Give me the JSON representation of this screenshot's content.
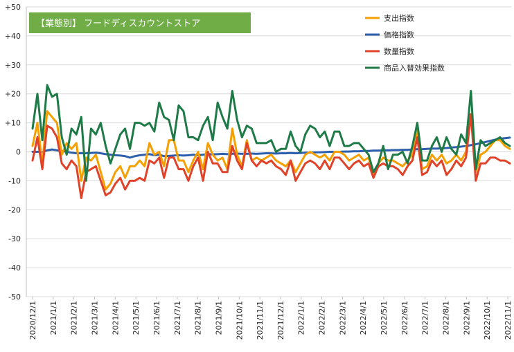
{
  "chart_data": {
    "type": "line",
    "title": "【業態別】 フードディスカウントストア",
    "title_bg_color": "#70ad47",
    "ylim": [
      -50,
      50
    ],
    "y_ticks": [
      "+50",
      "+40",
      "+30",
      "+20",
      "+10",
      "0",
      "-10",
      "-20",
      "-30",
      "-40",
      "-50"
    ],
    "y_tick_values": [
      50,
      40,
      30,
      20,
      10,
      0,
      -10,
      -20,
      -30,
      -40,
      -50
    ],
    "x_ticks": [
      "2020/12/1",
      "2021/1/1",
      "2021/2/1",
      "2021/3/1",
      "2021/4/1",
      "2021/5/1",
      "2021/6/1",
      "2021/7/1",
      "2021/8/1",
      "2021/9/1",
      "2021/10/1",
      "2021/11/1",
      "2021/12/1",
      "2022/1/1",
      "2022/2/1",
      "2022/3/1",
      "2022/4/1",
      "2022/5/1",
      "2022/6/1",
      "2022/7/1",
      "2022/8/1",
      "2022/9/1",
      "2022/10/1",
      "2022/11/1"
    ],
    "x_interval": "weekly",
    "x_start": "2020/12/1",
    "grid": "horizontal",
    "legend_position": "top-right",
    "series": [
      {
        "name": "支出指数",
        "color": "#f5a000",
        "values": [
          2,
          10,
          -4,
          14,
          12,
          10,
          -1,
          3,
          1,
          3,
          -10,
          -2,
          -3,
          -1,
          -7,
          -13,
          -11,
          -7,
          -5,
          -9,
          -5,
          -5,
          -3,
          -5,
          3,
          -1,
          0,
          -5,
          4,
          4,
          -3,
          -3,
          -7,
          -3,
          0,
          -6,
          3,
          -1,
          -3,
          -2,
          -6,
          8,
          -1,
          -5,
          4,
          -3,
          -2,
          -3,
          -2,
          -1,
          -3,
          -4,
          -5,
          -3,
          -7,
          -4,
          -1,
          0,
          -1,
          -2,
          -1,
          -3,
          0,
          0,
          -1,
          -3,
          -2,
          -1,
          -3,
          -2,
          -8,
          -4,
          -2,
          -3,
          -3,
          -4,
          -5,
          -3,
          -1,
          8,
          -6,
          -5,
          -1,
          -3,
          -1,
          -4,
          -3,
          -1,
          -3,
          0,
          13,
          -7,
          -1,
          0,
          2,
          4,
          4,
          2,
          1
        ]
      },
      {
        "name": "価格指数",
        "color": "#2e5fad",
        "values": [
          0,
          0,
          0,
          0.5,
          0.8,
          0.5,
          0.3,
          0,
          -0.3,
          -0.5,
          -0.5,
          -0.5,
          -0.4,
          -0.3,
          -0.5,
          -0.8,
          -1,
          -1.2,
          -1.3,
          -1.5,
          -2,
          -1.5,
          -1.2,
          -1,
          -0.8,
          -1.2,
          -1,
          -1.5,
          -1.4,
          -1.3,
          -1.2,
          -1.3,
          -1.2,
          -1,
          -1.2,
          -1,
          -0.8,
          -0.9,
          -0.8,
          -0.7,
          -0.8,
          -0.7,
          -0.6,
          -0.7,
          -0.7,
          -0.6,
          -0.7,
          -0.6,
          -0.5,
          -0.5,
          -0.6,
          -0.5,
          -0.5,
          -0.4,
          -0.5,
          -0.4,
          -0.3,
          -0.3,
          -0.2,
          -0.2,
          -0.1,
          0,
          0,
          0,
          0.1,
          0.1,
          0.2,
          0.2,
          0.3,
          0.3,
          0.4,
          0.4,
          0.5,
          0.5,
          0.6,
          0.6,
          0.7,
          0.7,
          0.8,
          0.9,
          0.9,
          1,
          1.1,
          1.1,
          1.2,
          1.3,
          1.5,
          1.6,
          1.8,
          2,
          2.3,
          2.6,
          3,
          3.4,
          3.8,
          4.2,
          4.5,
          4.7,
          4.9
        ]
      },
      {
        "name": "数量指数",
        "color": "#e0432a",
        "values": [
          -3,
          5,
          -6,
          9,
          8,
          5,
          -4,
          -6,
          -3,
          -5,
          -16,
          -7,
          -6,
          -5,
          -10,
          -15,
          -14,
          -11,
          -9,
          -13,
          -10,
          -10,
          -9,
          -10,
          -3,
          -4,
          -2,
          -9,
          -2,
          -2,
          -6,
          -6,
          -10,
          -5,
          -2,
          -10,
          0,
          -4,
          -4,
          -7,
          -7,
          2,
          -3,
          -6,
          3,
          -3,
          -5,
          -3,
          -4,
          -3,
          -5,
          -6,
          -8,
          -3,
          -10,
          -7,
          -4,
          -3,
          -4,
          -6,
          -3,
          -6,
          -2,
          -2,
          -4,
          -6,
          -4,
          -3,
          -5,
          -4,
          -9,
          -5,
          -4,
          -5,
          -5,
          -6,
          -8,
          -5,
          -3,
          5,
          -8,
          -7,
          -3,
          -5,
          -3,
          -8,
          -6,
          -3,
          -5,
          -2,
          13,
          -10,
          -4,
          -4,
          -2,
          -2,
          -3,
          -3,
          -4
        ]
      },
      {
        "name": "商品入替効果指数",
        "color": "#1e7a46",
        "values": [
          8,
          20,
          4,
          23,
          19,
          20,
          5,
          -1,
          8,
          6,
          12,
          -10,
          8,
          6,
          10,
          2,
          -4,
          1,
          6,
          8,
          1,
          10,
          10,
          9,
          10,
          7,
          17,
          12,
          11,
          4,
          16,
          14,
          5,
          5,
          4,
          9,
          12,
          4,
          17,
          12,
          8,
          21,
          11,
          5,
          9,
          8,
          3,
          3,
          3,
          4,
          0,
          1,
          1,
          7,
          2,
          0,
          6,
          9,
          8,
          5,
          7,
          2,
          7,
          7,
          2,
          2,
          3,
          3,
          1,
          -1,
          -7,
          -4,
          2,
          -6,
          -1,
          -1,
          0,
          -4,
          2,
          10,
          -3,
          -3,
          2,
          5,
          0,
          5,
          1,
          -1,
          6,
          3,
          21,
          -6,
          4,
          2,
          3,
          4,
          5,
          3,
          2
        ]
      }
    ]
  }
}
